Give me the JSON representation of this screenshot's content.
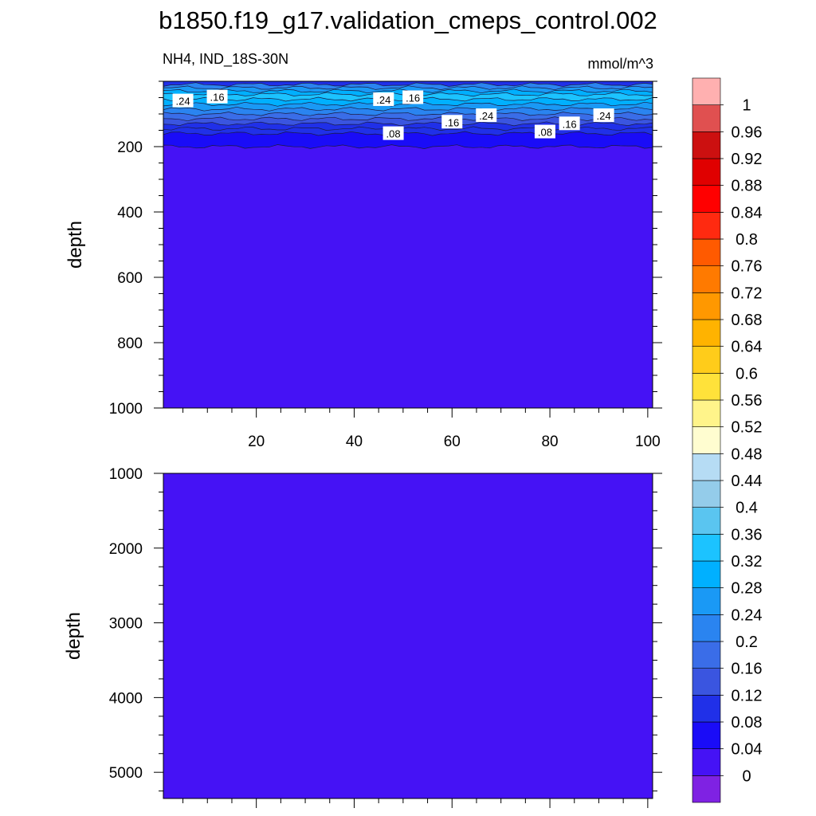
{
  "title": "b1850.f19_g17.validation_cmeps_control.002",
  "chart_data": [
    {
      "type": "contour",
      "panel": "upper",
      "left_label": "NH4, IND_18S-30N",
      "right_label": "mmol/m^3",
      "ylabel": "depth",
      "xlabel": "",
      "xlim": [
        1,
        101
      ],
      "ylim": [
        1000,
        0
      ],
      "y_reversed": true,
      "x_ticks": [
        "20",
        "40",
        "60",
        "80",
        "100"
      ],
      "y_ticks": [
        "200",
        "400",
        "600",
        "800",
        "1000"
      ],
      "x_tick_values": [
        20,
        40,
        60,
        80,
        100
      ],
      "y_tick_values": [
        200,
        400,
        600,
        800,
        1000
      ],
      "layers": [
        {
          "depth_top": 0,
          "depth_bottom": 10,
          "value": 0.08
        },
        {
          "depth_top": 10,
          "depth_bottom": 20,
          "value": 0.2
        },
        {
          "depth_top": 20,
          "depth_bottom": 30,
          "value": 0.24
        },
        {
          "depth_top": 30,
          "depth_bottom": 40,
          "value": 0.28
        },
        {
          "depth_top": 40,
          "depth_bottom": 55,
          "value": 0.34
        },
        {
          "depth_top": 55,
          "depth_bottom": 70,
          "value": 0.3
        },
        {
          "depth_top": 70,
          "depth_bottom": 85,
          "value": 0.26
        },
        {
          "depth_top": 85,
          "depth_bottom": 100,
          "value": 0.22
        },
        {
          "depth_top": 100,
          "depth_bottom": 115,
          "value": 0.18
        },
        {
          "depth_top": 115,
          "depth_bottom": 130,
          "value": 0.14
        },
        {
          "depth_top": 130,
          "depth_bottom": 145,
          "value": 0.1
        },
        {
          "depth_top": 145,
          "depth_bottom": 160,
          "value": 0.09
        },
        {
          "depth_top": 160,
          "depth_bottom": 200,
          "value": 0.06
        },
        {
          "depth_top": 200,
          "depth_bottom": 1000,
          "value": 0.02
        }
      ],
      "contour_labels": [
        {
          "text": ".24",
          "x": 5,
          "depth": 60
        },
        {
          "text": ".16",
          "x": 12,
          "depth": 48
        },
        {
          "text": ".24",
          "x": 46,
          "depth": 56
        },
        {
          "text": ".16",
          "x": 52,
          "depth": 50
        },
        {
          "text": ".16",
          "x": 60,
          "depth": 125
        },
        {
          "text": ".24",
          "x": 67,
          "depth": 105
        },
        {
          "text": ".08",
          "x": 48,
          "depth": 160
        },
        {
          "text": ".08",
          "x": 79,
          "depth": 155
        },
        {
          "text": ".16",
          "x": 84,
          "depth": 130
        },
        {
          "text": ".24",
          "x": 91,
          "depth": 105
        }
      ]
    },
    {
      "type": "contour",
      "panel": "lower",
      "ylabel": "depth",
      "xlim": [
        1,
        101
      ],
      "ylim": [
        5350,
        1000
      ],
      "y_reversed": true,
      "y_ticks": [
        "1000",
        "2000",
        "3000",
        "4000",
        "5000"
      ],
      "y_tick_values": [
        1000,
        2000,
        3000,
        4000,
        5000
      ],
      "layers": [
        {
          "depth_top": 1000,
          "depth_bottom": 5350,
          "value": 0.02
        }
      ]
    }
  ],
  "colorbar": {
    "labels": [
      "0",
      "0.04",
      "0.08",
      "0.12",
      "0.16",
      "0.2",
      "0.24",
      "0.28",
      "0.32",
      "0.36",
      "0.4",
      "0.44",
      "0.48",
      "0.52",
      "0.56",
      "0.6",
      "0.64",
      "0.68",
      "0.72",
      "0.76",
      "0.8",
      "0.84",
      "0.88",
      "0.92",
      "0.96",
      "1"
    ],
    "levels": [
      0,
      0.04,
      0.08,
      0.12,
      0.16,
      0.2,
      0.24,
      0.28,
      0.32,
      0.36,
      0.4,
      0.44,
      0.48,
      0.52,
      0.56,
      0.6,
      0.64,
      0.68,
      0.72,
      0.76,
      0.8,
      0.84,
      0.88,
      0.92,
      0.96,
      1
    ],
    "colors": [
      "#7f22e3",
      "#4512f5",
      "#1a0cf7",
      "#2030e8",
      "#3a55e0",
      "#3a6de8",
      "#2a84f0",
      "#1a99f5",
      "#00b0ff",
      "#1cc3ff",
      "#5ac5f0",
      "#94ccea",
      "#b6dcf4",
      "#fffdd0",
      "#fff48a",
      "#ffe23a",
      "#ffcc1a",
      "#ffb300",
      "#ff9800",
      "#ff7a00",
      "#ff5a00",
      "#ff2a10",
      "#ff0000",
      "#e00000",
      "#cc1010",
      "#e05050",
      "#ffb0b0"
    ]
  }
}
